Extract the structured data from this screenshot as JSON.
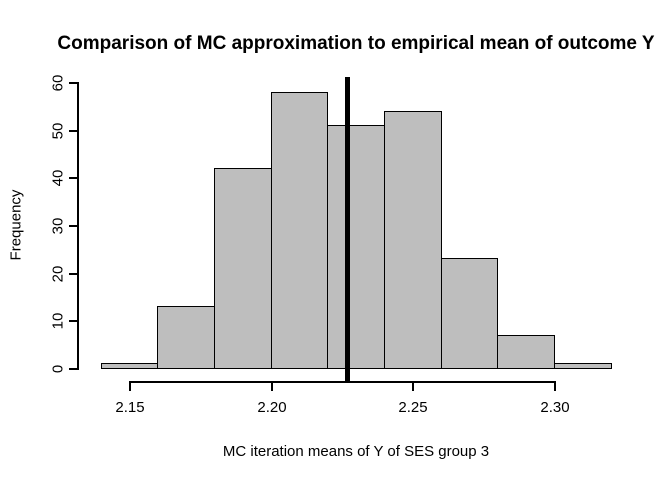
{
  "figure": {
    "title": "Comparison of MC approximation to empirical mean of outcome Y",
    "xlabel": "MC iteration means of Y of SES group 3",
    "ylabel": "Frequency"
  },
  "chart_data": {
    "type": "bar",
    "subtype": "histogram",
    "title": "Comparison of MC approximation to empirical mean of outcome Y",
    "xlabel": "MC iteration means of Y of SES group 3",
    "ylabel": "Frequency",
    "bin_edges": [
      2.14,
      2.16,
      2.18,
      2.2,
      2.22,
      2.24,
      2.26,
      2.28,
      2.3,
      2.32
    ],
    "counts": [
      1,
      13,
      42,
      58,
      51,
      54,
      23,
      7,
      1
    ],
    "total_n": 250,
    "x_ticks": [
      2.15,
      2.2,
      2.25,
      2.3
    ],
    "x_tick_labels": [
      "2.15",
      "2.20",
      "2.25",
      "2.30"
    ],
    "y_ticks": [
      0,
      10,
      20,
      30,
      40,
      50,
      60
    ],
    "y_tick_labels": [
      "0",
      "10",
      "20",
      "30",
      "40",
      "50",
      "60"
    ],
    "xlim": [
      2.14,
      2.32
    ],
    "ylim": [
      0,
      60
    ],
    "grid": false,
    "legend": null,
    "vline": {
      "x": 2.227,
      "color": "#000000",
      "line_width": 5
    },
    "bar_fill": "#bebebe",
    "bar_border": "#000000",
    "background": "#ffffff"
  }
}
